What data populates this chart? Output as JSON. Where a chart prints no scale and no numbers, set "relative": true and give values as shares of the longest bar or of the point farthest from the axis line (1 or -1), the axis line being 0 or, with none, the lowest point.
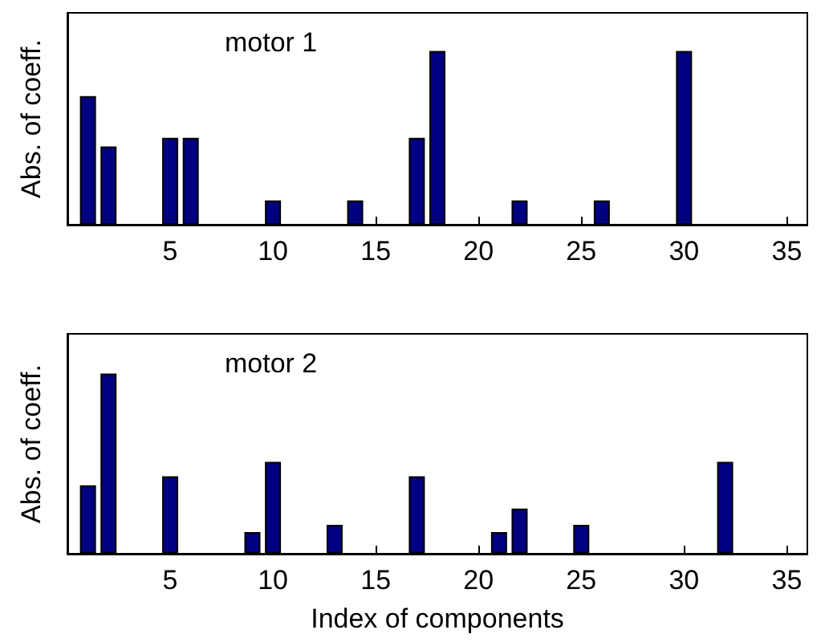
{
  "chart_data": [
    {
      "type": "bar",
      "ylabel": "Abs. of coeff.",
      "annotations": [
        "motor 1"
      ],
      "relative": true,
      "tick_labels": "x",
      "grid": false,
      "x": [
        1,
        2,
        5,
        6,
        10,
        14,
        17,
        18,
        22,
        26,
        30
      ],
      "values": [
        0.74,
        0.45,
        0.5,
        0.5,
        0.14,
        0.14,
        0.5,
        1,
        0.14,
        0.14,
        1
      ],
      "color": "#000080",
      "xlim": [
        0,
        36
      ],
      "xticks": [
        5,
        10,
        15,
        20,
        25,
        30,
        35
      ]
    },
    {
      "type": "bar",
      "xlabel": "Index of components",
      "ylabel": "Abs. of coeff.",
      "annotations": [
        "motor 2"
      ],
      "relative": true,
      "tick_labels": "x",
      "grid": false,
      "x": [
        1,
        2,
        5,
        9,
        10,
        13,
        17,
        21,
        22,
        25,
        32
      ],
      "values": [
        0.38,
        1,
        0.43,
        0.12,
        0.51,
        0.16,
        0.43,
        0.12,
        0.25,
        0.16,
        0.51
      ],
      "color": "#000080",
      "xlim": [
        0,
        36
      ],
      "xticks": [
        5,
        10,
        15,
        20,
        25,
        30,
        35
      ]
    }
  ]
}
